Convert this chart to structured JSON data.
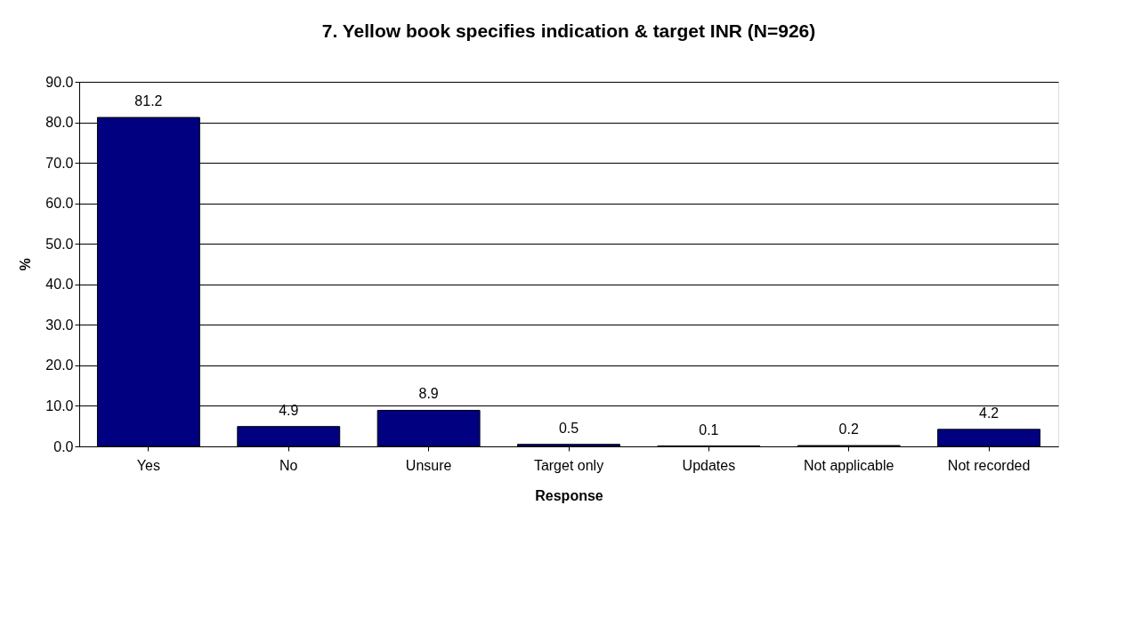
{
  "chart_data": {
    "type": "bar",
    "title": "7. Yellow book specifies indication & target INR (N=926)",
    "xlabel": "Response",
    "ylabel": "%",
    "categories": [
      "Yes",
      "No",
      "Unsure",
      "Target only",
      "Updates",
      "Not applicable",
      "Not recorded"
    ],
    "values": [
      81.2,
      4.9,
      8.9,
      0.5,
      0.1,
      0.2,
      4.2
    ],
    "color": "#000080",
    "ylim": [
      0,
      90
    ],
    "yticks": [
      {
        "value": 0,
        "label": "0.0"
      },
      {
        "value": 10,
        "label": "10.0"
      },
      {
        "value": 20,
        "label": "20.0"
      },
      {
        "value": 30,
        "label": "30.0"
      },
      {
        "value": 40,
        "label": "40.0"
      },
      {
        "value": 50,
        "label": "50.0"
      },
      {
        "value": 60,
        "label": "60.0"
      },
      {
        "value": 70,
        "label": "70.0"
      },
      {
        "value": 80,
        "label": "80.0"
      },
      {
        "value": 90,
        "label": "90.0"
      }
    ],
    "grid": "y",
    "data_labels": true,
    "legend": false
  }
}
